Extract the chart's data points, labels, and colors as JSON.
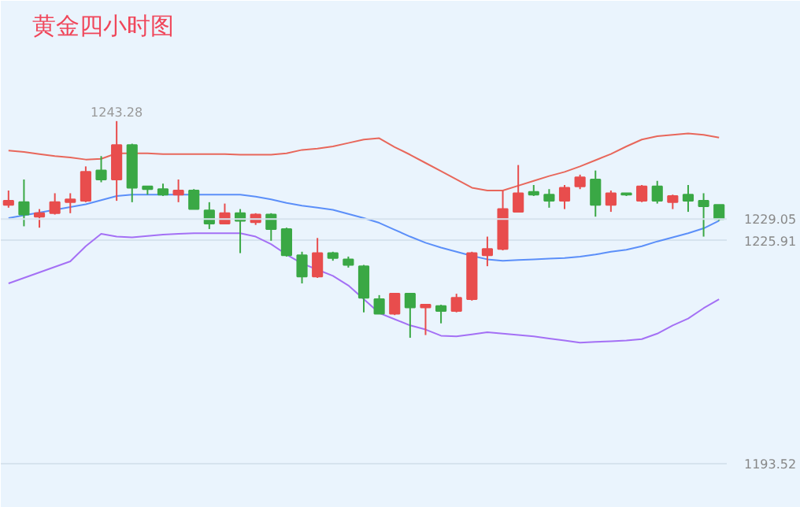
{
  "chart_data": {
    "type": "candlestick",
    "title": "黄金四小时图",
    "categories": [
      null,
      null,
      null,
      null,
      null,
      null,
      null,
      null,
      null,
      null,
      null,
      null,
      null,
      null,
      null,
      null,
      null,
      null,
      null,
      null,
      null,
      null,
      null,
      null,
      null,
      null,
      null,
      null,
      null,
      null,
      null,
      null,
      null,
      null,
      null,
      null,
      null,
      null,
      null,
      null,
      null,
      null,
      null,
      null,
      null,
      null,
      null
    ],
    "ohlc": [
      [
        1231.1,
        1233.2,
        1230.7,
        1231.7
      ],
      [
        1231.5,
        1234.8,
        1228.0,
        1229.7
      ],
      [
        1229.4,
        1230.5,
        1227.8,
        1229.9
      ],
      [
        1229.9,
        1232.8,
        1229.7,
        1231.5
      ],
      [
        1231.5,
        1232.8,
        1229.9,
        1231.9
      ],
      [
        1231.7,
        1236.7,
        1231.5,
        1235.9
      ],
      [
        1236.1,
        1238.2,
        1234.4,
        1234.8
      ],
      [
        1234.8,
        1243.28,
        1231.7,
        1239.8
      ],
      [
        1239.8,
        1240.0,
        1231.5,
        1233.6
      ],
      [
        1233.8,
        1233.8,
        1232.6,
        1233.4
      ],
      [
        1233.4,
        1234.2,
        1232.4,
        1232.6
      ],
      [
        1232.6,
        1234.8,
        1231.5,
        1233.2
      ],
      [
        1233.2,
        1233.4,
        1230.5,
        1230.5
      ],
      [
        1230.3,
        1231.5,
        1227.6,
        1228.4
      ],
      [
        1228.4,
        1231.3,
        1228.4,
        1229.9
      ],
      [
        1229.9,
        1230.5,
        1224.1,
        1228.8
      ],
      [
        1228.6,
        1229.9,
        1228.2,
        1229.7
      ],
      [
        1229.7,
        1229.9,
        1225.9,
        1227.6
      ],
      [
        1227.6,
        1227.8,
        1223.6,
        1223.8
      ],
      [
        1223.8,
        1224.3,
        1219.7,
        1220.7
      ],
      [
        1220.7,
        1226.3,
        1220.5,
        1224.1
      ],
      [
        1224.1,
        1224.3,
        1223.0,
        1223.4
      ],
      [
        1223.2,
        1223.6,
        1222.0,
        1222.4
      ],
      [
        1222.2,
        1222.4,
        1215.5,
        1217.6
      ],
      [
        1217.4,
        1218.0,
        1215.3,
        1215.3
      ],
      [
        1215.3,
        1218.2,
        1215.1,
        1218.2
      ],
      [
        1218.2,
        1218.2,
        1211.8,
        1216.2
      ],
      [
        1216.2,
        1216.6,
        1212.2,
        1216.6
      ],
      [
        1216.4,
        1216.6,
        1213.9,
        1215.7
      ],
      [
        1215.7,
        1218.2,
        1215.5,
        1217.6
      ],
      [
        1217.4,
        1224.3,
        1217.2,
        1224.1
      ],
      [
        1223.8,
        1226.5,
        1222.2,
        1224.7
      ],
      [
        1224.7,
        1233.2,
        1224.5,
        1230.5
      ],
      [
        1230.1,
        1236.9,
        1230.1,
        1232.8
      ],
      [
        1233.0,
        1234.0,
        1232.4,
        1232.6
      ],
      [
        1232.6,
        1233.4,
        1230.7,
        1231.7
      ],
      [
        1231.7,
        1234.0,
        1230.5,
        1233.6
      ],
      [
        1233.8,
        1235.5,
        1233.4,
        1235.1
      ],
      [
        1234.8,
        1236.1,
        1229.4,
        1231.1
      ],
      [
        1231.1,
        1233.2,
        1230.1,
        1232.8
      ],
      [
        1232.8,
        1232.8,
        1232.4,
        1232.6
      ],
      [
        1231.7,
        1234.0,
        1231.5,
        1233.8
      ],
      [
        1233.8,
        1234.6,
        1231.3,
        1231.7
      ],
      [
        1231.5,
        1232.6,
        1230.5,
        1232.4
      ],
      [
        1232.6,
        1234.0,
        1230.1,
        1231.7
      ],
      [
        1231.7,
        1232.8,
        1226.5,
        1230.9
      ],
      [
        1231.1,
        1231.1,
        1228.8,
        1229.05
      ]
    ],
    "colors": [
      "#e84d4d",
      "#3aa845",
      "#e84d4d",
      "#e84d4d",
      "#e84d4d",
      "#e84d4d",
      "#3aa845",
      "#e84d4d",
      "#3aa845",
      "#3aa845",
      "#3aa845",
      "#e84d4d",
      "#3aa845",
      "#3aa845",
      "#e84d4d",
      "#3aa845",
      "#e84d4d",
      "#3aa845",
      "#3aa845",
      "#3aa845",
      "#e84d4d",
      "#3aa845",
      "#3aa845",
      "#3aa845",
      "#3aa845",
      "#e84d4d",
      "#3aa845",
      "#e84d4d",
      "#3aa845",
      "#e84d4d",
      "#e84d4d",
      "#e84d4d",
      "#e84d4d",
      "#e84d4d",
      "#3aa845",
      "#3aa845",
      "#e84d4d",
      "#e84d4d",
      "#3aa845",
      "#e84d4d",
      "#3aa845",
      "#e84d4d",
      "#3aa845",
      "#e84d4d",
      "#3aa845",
      "#3aa845",
      "#3aa845"
    ],
    "series": [
      {
        "type": "line",
        "color": "#e8675b",
        "values": [
          1239.0,
          1238.8,
          1238.5,
          1238.2,
          1238.0,
          1237.7,
          1237.8,
          1238.6,
          1238.6,
          1238.6,
          1238.5,
          1238.5,
          1238.5,
          1238.5,
          1238.5,
          1238.4,
          1238.4,
          1238.4,
          1238.6,
          1239.1,
          1239.3,
          1239.6,
          1240.1,
          1240.6,
          1240.8,
          1239.5,
          1238.4,
          1237.2,
          1236.0,
          1234.8,
          1233.6,
          1233.2,
          1233.2,
          1233.9,
          1234.6,
          1235.3,
          1235.9,
          1236.7,
          1237.6,
          1238.5,
          1239.6,
          1240.6,
          1241.1,
          1241.3,
          1241.5,
          1241.3,
          1240.9
        ]
      },
      {
        "type": "line",
        "color": "#5b8ff9",
        "values": [
          1229.2,
          1229.6,
          1230.0,
          1230.4,
          1230.8,
          1231.2,
          1231.8,
          1232.4,
          1232.6,
          1232.6,
          1232.6,
          1232.6,
          1232.6,
          1232.6,
          1232.6,
          1232.6,
          1232.3,
          1231.9,
          1231.4,
          1231.0,
          1230.7,
          1230.4,
          1229.8,
          1229.2,
          1228.5,
          1227.5,
          1226.5,
          1225.6,
          1224.9,
          1224.3,
          1223.7,
          1223.2,
          1223.0,
          1223.1,
          1223.2,
          1223.3,
          1223.4,
          1223.6,
          1223.9,
          1224.3,
          1224.6,
          1225.1,
          1225.8,
          1226.4,
          1227.0,
          1227.7,
          1228.8
        ]
      },
      {
        "type": "line",
        "color": "#a470f5",
        "values": [
          1219.7,
          1220.5,
          1221.3,
          1222.1,
          1222.9,
          1225.1,
          1226.9,
          1226.5,
          1226.4,
          1226.6,
          1226.8,
          1226.9,
          1227.0,
          1227.0,
          1227.0,
          1227.0,
          1226.5,
          1225.4,
          1223.9,
          1222.6,
          1221.7,
          1220.8,
          1219.4,
          1217.4,
          1215.4,
          1214.5,
          1213.6,
          1213.0,
          1212.1,
          1212.0,
          1212.3,
          1212.6,
          1212.4,
          1212.2,
          1212.0,
          1211.7,
          1211.4,
          1211.1,
          1211.2,
          1211.3,
          1211.4,
          1211.6,
          1212.4,
          1213.6,
          1214.6,
          1216.1,
          1217.4
        ]
      }
    ],
    "ylim": [
      1187.1,
      1253.9
    ],
    "yticks": [
      1225.91,
      1193.52
    ],
    "grid": "y",
    "ref_lines": [
      {
        "axis": "y",
        "value": 1229.05,
        "label": "1229.05"
      }
    ],
    "annotations": [
      "1243.28"
    ]
  }
}
